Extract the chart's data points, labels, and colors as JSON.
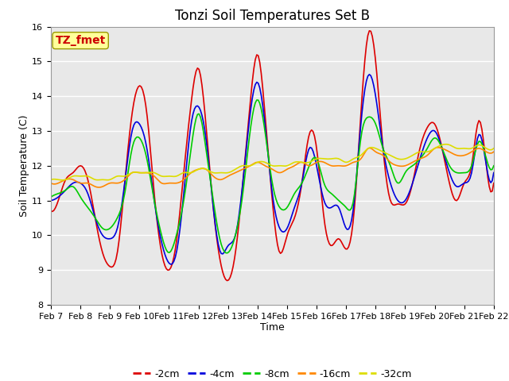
{
  "title": "Tonzi Soil Temperatures Set B",
  "xlabel": "Time",
  "ylabel": "Soil Temperature (C)",
  "ylim": [
    8.0,
    16.0
  ],
  "yticks": [
    8.0,
    9.0,
    10.0,
    11.0,
    12.0,
    13.0,
    14.0,
    15.0,
    16.0
  ],
  "x_labels": [
    "Feb 7",
    "Feb 8",
    "Feb 9",
    "Feb 10",
    "Feb 11",
    "Feb 12",
    "Feb 13",
    "Feb 14",
    "Feb 15",
    "Feb 16",
    "Feb 17",
    "Feb 18",
    "Feb 19",
    "Feb 20",
    "Feb 21",
    "Feb 22"
  ],
  "colors": {
    "-2cm": "#dd0000",
    "-4cm": "#0000dd",
    "-8cm": "#00cc00",
    "-16cm": "#ff8800",
    "-32cm": "#dddd00"
  },
  "legend_labels": [
    "-2cm",
    "-4cm",
    "-8cm",
    "-16cm",
    "-32cm"
  ],
  "annotation_text": "TZ_fmet",
  "annotation_color": "#cc0000",
  "annotation_bg": "#ffff99",
  "plot_bg": "#e8e8e8",
  "fig_bg": "#ffffff",
  "grid_color": "#ffffff",
  "title_fontsize": 12,
  "axis_fontsize": 9,
  "tick_fontsize": 8,
  "series": {
    "-2cm": {
      "t": [
        0,
        0.25,
        0.5,
        0.75,
        1,
        1.25,
        1.5,
        1.75,
        2,
        2.25,
        2.5,
        2.75,
        3,
        3.25,
        3.5,
        3.75,
        4,
        4.25,
        4.5,
        4.75,
        5,
        5.25,
        5.5,
        5.75,
        6,
        6.25,
        6.5,
        6.75,
        7,
        7.25,
        7.5,
        7.75,
        8,
        8.25,
        8.5,
        8.75,
        9,
        9.25,
        9.5,
        9.75,
        10,
        10.25,
        10.5,
        10.75,
        11,
        11.25,
        11.5,
        11.75,
        12,
        12.25,
        12.5,
        12.75,
        13,
        13.25,
        13.5,
        13.75,
        14,
        14.25,
        14.5,
        14.75,
        15
      ],
      "y": [
        10.7,
        11.0,
        11.6,
        11.8,
        12.0,
        11.6,
        10.5,
        9.5,
        9.1,
        9.5,
        11.5,
        13.5,
        14.3,
        13.5,
        11.2,
        9.5,
        9.0,
        9.8,
        11.8,
        13.8,
        14.8,
        13.2,
        10.8,
        9.2,
        8.7,
        9.5,
        11.5,
        13.8,
        15.2,
        13.5,
        11.0,
        9.5,
        10.0,
        10.5,
        11.5,
        12.9,
        12.5,
        10.5,
        9.7,
        9.9,
        9.6,
        10.5,
        13.5,
        15.8,
        15.0,
        12.5,
        11.0,
        10.9,
        10.9,
        11.5,
        12.5,
        13.1,
        13.2,
        12.5,
        11.5,
        11.0,
        11.5,
        12.0,
        13.3,
        12.0,
        11.5
      ]
    },
    "-4cm": {
      "t": [
        0,
        0.25,
        0.5,
        0.75,
        1,
        1.25,
        1.5,
        1.75,
        2,
        2.25,
        2.5,
        2.75,
        3,
        3.25,
        3.5,
        3.75,
        4,
        4.25,
        4.5,
        4.75,
        5,
        5.25,
        5.5,
        5.75,
        6,
        6.25,
        6.5,
        6.75,
        7,
        7.25,
        7.5,
        7.75,
        8,
        8.25,
        8.5,
        8.75,
        9,
        9.25,
        9.5,
        9.75,
        10,
        10.25,
        10.5,
        10.75,
        11,
        11.25,
        11.5,
        11.75,
        12,
        12.25,
        12.5,
        12.75,
        13,
        13.25,
        13.5,
        13.75,
        14,
        14.25,
        14.5,
        14.75,
        15
      ],
      "y": [
        11.0,
        11.1,
        11.3,
        11.5,
        11.5,
        11.2,
        10.5,
        10.0,
        9.9,
        10.2,
        11.5,
        13.0,
        13.2,
        12.5,
        11.0,
        9.8,
        9.2,
        9.5,
        11.2,
        13.2,
        13.7,
        12.8,
        10.8,
        9.5,
        9.7,
        10.0,
        11.5,
        13.5,
        14.4,
        13.2,
        11.2,
        10.2,
        10.2,
        10.8,
        11.5,
        12.5,
        12.0,
        11.0,
        10.8,
        10.8,
        10.2,
        10.8,
        13.2,
        14.6,
        14.0,
        12.5,
        11.5,
        11.0,
        11.0,
        11.5,
        12.2,
        12.8,
        13.0,
        12.5,
        11.8,
        11.4,
        11.5,
        11.8,
        12.9,
        12.0,
        11.8
      ]
    },
    "-8cm": {
      "t": [
        0,
        0.25,
        0.5,
        0.75,
        1,
        1.25,
        1.5,
        1.75,
        2,
        2.25,
        2.5,
        2.75,
        3,
        3.25,
        3.5,
        3.75,
        4,
        4.25,
        4.5,
        4.75,
        5,
        5.25,
        5.5,
        5.75,
        6,
        6.25,
        6.5,
        6.75,
        7,
        7.25,
        7.5,
        7.75,
        8,
        8.25,
        8.5,
        8.75,
        9,
        9.25,
        9.5,
        9.75,
        10,
        10.25,
        10.5,
        10.75,
        11,
        11.25,
        11.5,
        11.75,
        12,
        12.25,
        12.5,
        12.75,
        13,
        13.25,
        13.5,
        13.75,
        14,
        14.25,
        14.5,
        14.75,
        15
      ],
      "y": [
        11.1,
        11.2,
        11.3,
        11.4,
        11.1,
        10.8,
        10.5,
        10.2,
        10.2,
        10.5,
        11.2,
        12.5,
        12.8,
        12.2,
        11.0,
        10.0,
        9.5,
        10.0,
        11.0,
        12.5,
        13.5,
        12.5,
        11.0,
        9.8,
        9.5,
        10.0,
        11.2,
        13.0,
        13.9,
        13.0,
        11.5,
        10.8,
        10.8,
        11.2,
        11.5,
        12.0,
        12.2,
        11.5,
        11.2,
        11.0,
        10.8,
        11.0,
        12.8,
        13.4,
        13.2,
        12.5,
        12.0,
        11.5,
        11.8,
        12.0,
        12.2,
        12.5,
        12.8,
        12.5,
        12.0,
        11.8,
        11.8,
        12.0,
        12.7,
        12.2,
        12.0
      ]
    },
    "-16cm": {
      "t": [
        0,
        0.25,
        0.5,
        0.75,
        1,
        1.25,
        1.5,
        1.75,
        2,
        2.25,
        2.5,
        2.75,
        3,
        3.25,
        3.5,
        3.75,
        4,
        4.25,
        4.5,
        4.75,
        5,
        5.25,
        5.5,
        5.75,
        6,
        6.25,
        6.5,
        6.75,
        7,
        7.25,
        7.5,
        7.75,
        8,
        8.25,
        8.5,
        8.75,
        9,
        9.25,
        9.5,
        9.75,
        10,
        10.25,
        10.5,
        10.75,
        11,
        11.25,
        11.5,
        11.75,
        12,
        12.25,
        12.5,
        12.75,
        13,
        13.25,
        13.5,
        13.75,
        14,
        14.25,
        14.5,
        14.75,
        15
      ],
      "y": [
        11.5,
        11.5,
        11.6,
        11.6,
        11.5,
        11.5,
        11.4,
        11.4,
        11.5,
        11.5,
        11.6,
        11.8,
        11.8,
        11.8,
        11.7,
        11.5,
        11.5,
        11.5,
        11.6,
        11.8,
        11.9,
        11.9,
        11.7,
        11.6,
        11.7,
        11.8,
        11.9,
        12.0,
        12.1,
        12.0,
        11.9,
        11.8,
        11.9,
        12.0,
        12.1,
        12.0,
        12.1,
        12.1,
        12.0,
        12.0,
        12.0,
        12.1,
        12.2,
        12.5,
        12.4,
        12.3,
        12.1,
        12.0,
        12.0,
        12.1,
        12.2,
        12.3,
        12.5,
        12.5,
        12.4,
        12.3,
        12.3,
        12.4,
        12.5,
        12.4,
        12.4
      ]
    },
    "-32cm": {
      "t": [
        0,
        0.25,
        0.5,
        0.75,
        1,
        1.25,
        1.5,
        1.75,
        2,
        2.25,
        2.5,
        2.75,
        3,
        3.25,
        3.5,
        3.75,
        4,
        4.25,
        4.5,
        4.75,
        5,
        5.25,
        5.5,
        5.75,
        6,
        6.25,
        6.5,
        6.75,
        7,
        7.25,
        7.5,
        7.75,
        8,
        8.25,
        8.5,
        8.75,
        9,
        9.25,
        9.5,
        9.75,
        10,
        10.25,
        10.5,
        10.75,
        11,
        11.25,
        11.5,
        11.75,
        12,
        12.25,
        12.5,
        12.75,
        13,
        13.25,
        13.5,
        13.75,
        14,
        14.25,
        14.5,
        14.75,
        15
      ],
      "y": [
        11.6,
        11.6,
        11.6,
        11.7,
        11.7,
        11.7,
        11.6,
        11.6,
        11.6,
        11.7,
        11.7,
        11.8,
        11.8,
        11.8,
        11.8,
        11.7,
        11.7,
        11.7,
        11.8,
        11.8,
        11.9,
        11.9,
        11.8,
        11.8,
        11.8,
        11.9,
        12.0,
        12.0,
        12.1,
        12.1,
        12.0,
        12.0,
        12.0,
        12.1,
        12.1,
        12.1,
        12.2,
        12.2,
        12.2,
        12.2,
        12.1,
        12.2,
        12.3,
        12.5,
        12.5,
        12.4,
        12.3,
        12.2,
        12.2,
        12.3,
        12.4,
        12.4,
        12.5,
        12.6,
        12.6,
        12.5,
        12.5,
        12.5,
        12.6,
        12.5,
        12.5
      ]
    }
  }
}
